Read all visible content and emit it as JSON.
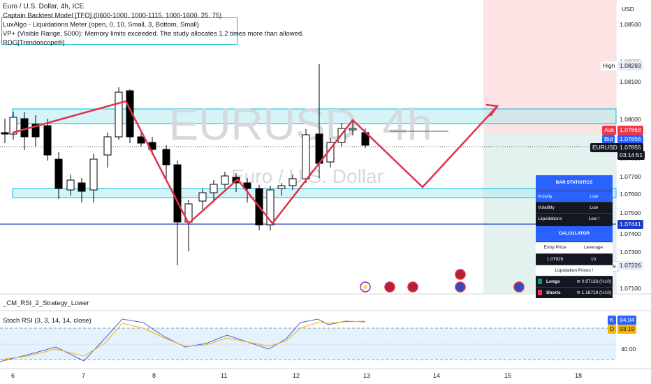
{
  "symbol": {
    "title": "Euro / U.S. Dollar, 4h, ICE",
    "watermark_ticker": "EURUSD, 4h",
    "watermark_name": "Euro / U.S. Dollar"
  },
  "indicators": [
    "Captain Backtest Model [TFO] (0600-1000, 1000-1115, 1000-1600, 25, 75)",
    "LuxAlgo - Liquidations Meter (open, 0, 10, Small, 3, Bottom, Small)",
    "VP+ (Visible Range, 5000): Memory limits exceeded. The study allocates 1.2 times more than allowed.",
    "RDG[Trendoscope®]"
  ],
  "price_axis": {
    "currency": "USD",
    "ticks": [
      "1.08500",
      "1.08200",
      "1.08100",
      "1.08000",
      "1.07800",
      "1.07700",
      "1.07600",
      "1.07500",
      "1.07400",
      "1.07300",
      "1.07100"
    ],
    "high_label": "High",
    "high_value": "1.08283",
    "ask_label": "Ask",
    "ask_value": "1.07863",
    "bid_label": "Bid",
    "bid_value": "1.07856",
    "symbol_label": "EURUSD",
    "last_value": "1.07855",
    "countdown": "03:14:51",
    "line_value": "1.07441",
    "low_label": "Low",
    "low_value": "1.07226"
  },
  "bar_statistics": {
    "header": "BAR STATISTICS",
    "rows": [
      {
        "label": "Activity",
        "value": "Low"
      },
      {
        "label": "Volatility",
        "value": "Low"
      },
      {
        "label": "Liquidations",
        "value": "Low !"
      }
    ]
  },
  "calculator": {
    "header": "CALCULATOR",
    "col1": "Entry Price",
    "col2": "Leverage",
    "entry_price": "1.07926",
    "leverage": "10",
    "liq_header": "Liquidation Prices !",
    "longs_label": "Longs",
    "longs_value": "≅ 0.97133 (½10)",
    "shorts_label": "Shorts",
    "shorts_value": "≅ 1.18719 (½10)",
    "longs_color": "#089981",
    "shorts_color": "#f23645"
  },
  "lower_panes": {
    "strategy_title": "_CM_RSI_2_Strategy_Lower",
    "stoch_title": "Stoch RSI (3, 3, 14, 14, close)",
    "k_label": "K",
    "k_value": "94.04",
    "d_label": "D",
    "d_value": "93.19",
    "level_label": "40.00"
  },
  "time_axis": [
    "6",
    "7",
    "8",
    "11",
    "12",
    "13",
    "14",
    "15",
    "18"
  ],
  "colors": {
    "bull": "#ffffff",
    "bear": "#000000",
    "zone": "#00bcd4",
    "path": "#e0324b",
    "blue_line": "#1e3cc8",
    "k_line": "#5b5bd6",
    "d_line": "#f5b400"
  }
}
